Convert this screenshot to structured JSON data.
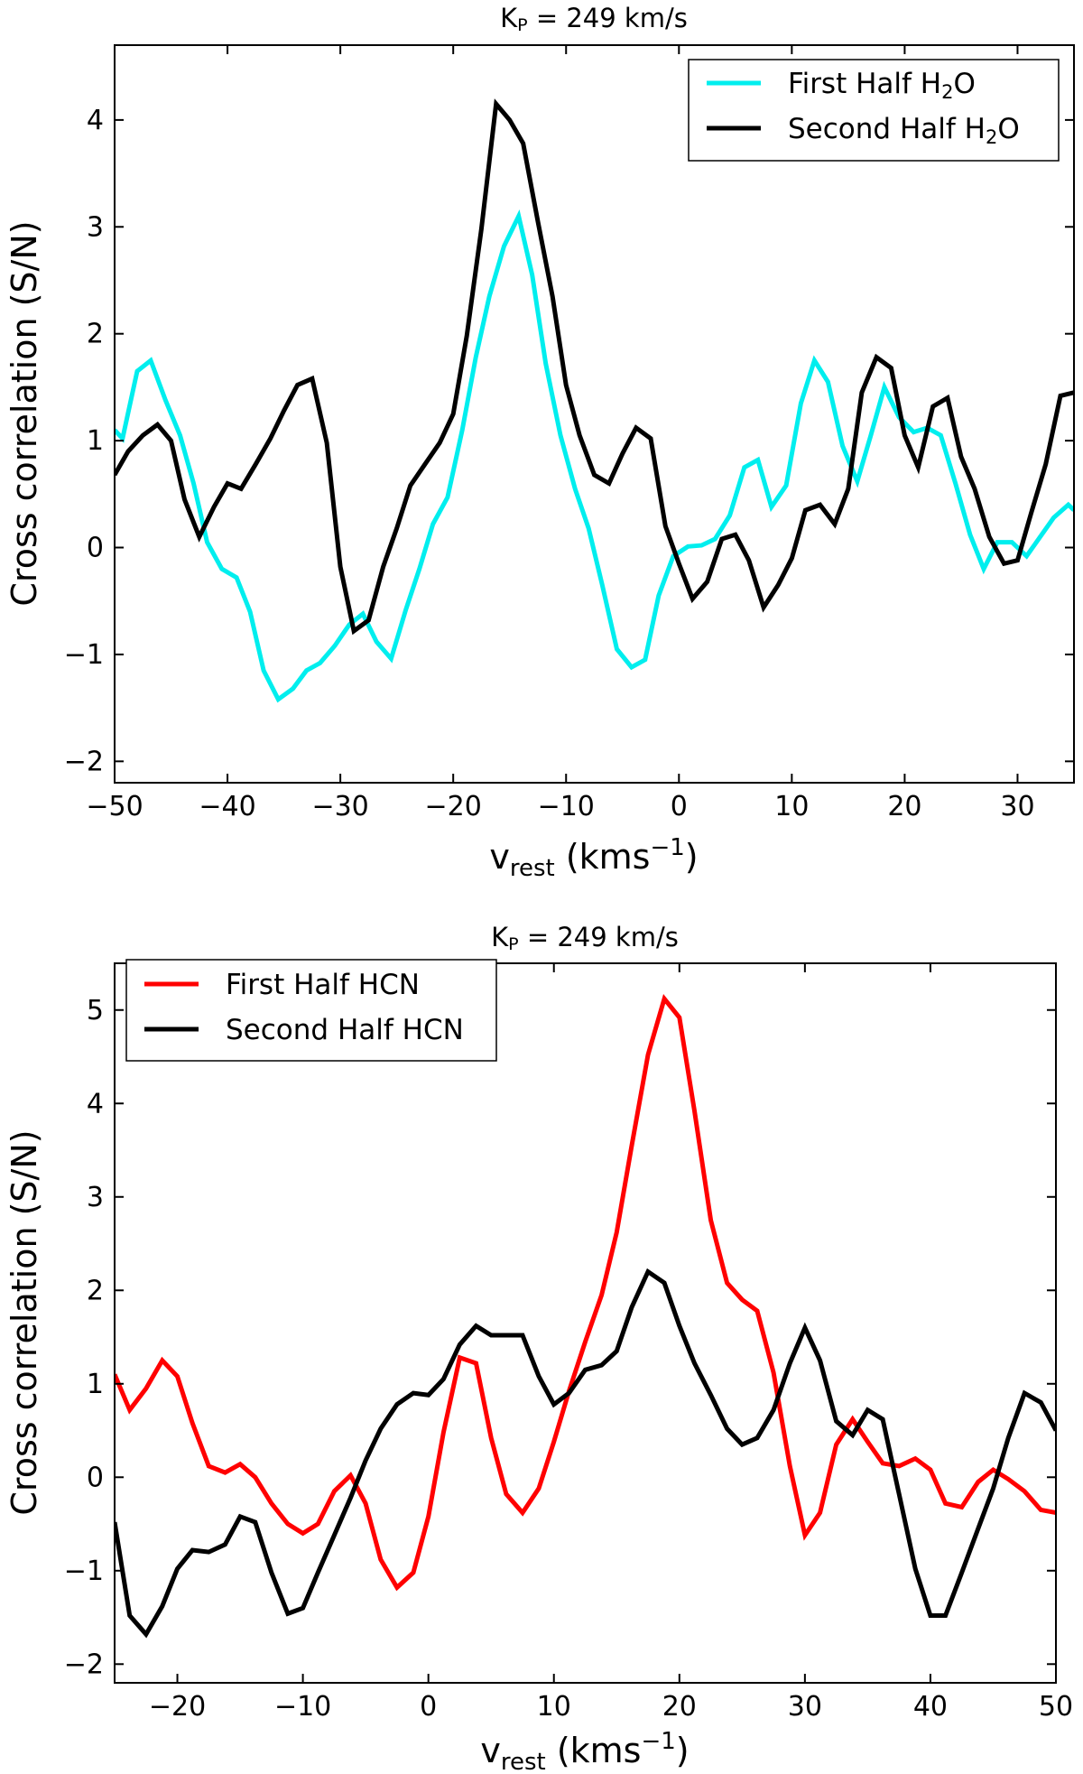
{
  "chart_data": [
    {
      "type": "line",
      "title": {
        "base": "K",
        "sub": "P",
        "rest": " = 249 km/s"
      },
      "xlabel": {
        "base": "v",
        "sub": "rest",
        "rest": " (kms",
        "sup": "−1",
        "end": ")"
      },
      "ylabel": "Cross correlation (S/N)",
      "xlim": [
        -50,
        35
      ],
      "ylim": [
        -2.2,
        4.7
      ],
      "xticks": [
        -50,
        -40,
        -30,
        -20,
        -10,
        0,
        10,
        20,
        30
      ],
      "xtick_labels": [
        "−50",
        "−40",
        "−30",
        "−20",
        "−10",
        "0",
        "10",
        "20",
        "30"
      ],
      "yticks": [
        -2,
        -1,
        0,
        1,
        2,
        3,
        4
      ],
      "ytick_labels": [
        "−2",
        "−1",
        "0",
        "1",
        "2",
        "3",
        "4"
      ],
      "grid": false,
      "legend_position": "top-right",
      "series": [
        {
          "name": "First Half H2O",
          "label": {
            "base": "First Half H",
            "sub": "2",
            "rest": "O"
          },
          "color": "#00eeee",
          "x": [
            -50,
            -49.3,
            -48,
            -46.8,
            -45.5,
            -44.2,
            -43,
            -41.8,
            -40.5,
            -39.2,
            -38,
            -36.8,
            -35.5,
            -34.2,
            -33,
            -31.8,
            -30.5,
            -29.2,
            -28,
            -26.8,
            -25.5,
            -24.2,
            -23,
            -21.8,
            -20.5,
            -19.2,
            -18,
            -16.8,
            -15.5,
            -14.2,
            -13,
            -11.8,
            -10.5,
            -9.2,
            -8,
            -6.8,
            -5.5,
            -4.2,
            -3,
            -1.8,
            -0.5,
            0.8,
            2,
            3.2,
            4.5,
            5.8,
            7,
            8.2,
            9.5,
            10.8,
            12,
            13.2,
            14.5,
            15.8,
            17,
            18.2,
            19.5,
            20.8,
            22,
            23.2,
            24.5,
            25.8,
            27,
            28.2,
            29.5,
            30.8,
            32,
            33.2,
            34.5,
            35
          ],
          "y": [
            1.1,
            1.02,
            1.65,
            1.75,
            1.38,
            1.05,
            0.6,
            0.05,
            -0.2,
            -0.28,
            -0.6,
            -1.15,
            -1.42,
            -1.32,
            -1.15,
            -1.08,
            -0.92,
            -0.72,
            -0.62,
            -0.88,
            -1.04,
            -0.58,
            -0.2,
            0.22,
            0.47,
            1.1,
            1.78,
            2.35,
            2.82,
            3.1,
            2.55,
            1.72,
            1.05,
            0.55,
            0.18,
            -0.35,
            -0.95,
            -1.12,
            -1.05,
            -0.45,
            -0.08,
            0.01,
            0.02,
            0.08,
            0.3,
            0.75,
            0.82,
            0.38,
            0.58,
            1.35,
            1.75,
            1.55,
            0.95,
            0.62,
            1.05,
            1.5,
            1.22,
            1.08,
            1.12,
            1.05,
            0.6,
            0.12,
            -0.2,
            0.05,
            0.05,
            -0.08,
            0.1,
            0.28,
            0.4,
            0.35
          ]
        },
        {
          "name": "Second Half H2O",
          "label": {
            "base": "Second Half H",
            "sub": "2",
            "rest": "O"
          },
          "color": "#000000",
          "x": [
            -50,
            -48.8,
            -47.5,
            -46.2,
            -45,
            -43.8,
            -42.5,
            -41.2,
            -40,
            -38.8,
            -37.5,
            -36.2,
            -35,
            -33.8,
            -32.5,
            -31.2,
            -30,
            -28.8,
            -27.5,
            -26.2,
            -25,
            -23.8,
            -22.5,
            -21.2,
            -20,
            -18.8,
            -17.5,
            -16.2,
            -15,
            -13.8,
            -12.5,
            -11.2,
            -10,
            -8.8,
            -7.5,
            -6.2,
            -5,
            -3.8,
            -2.5,
            -1.2,
            0,
            1.2,
            2.5,
            3.8,
            5,
            6.2,
            7.5,
            8.8,
            10,
            11.2,
            12.5,
            13.8,
            15,
            16.2,
            17.5,
            18.8,
            20,
            21.2,
            22.5,
            23.8,
            25,
            26.2,
            27.5,
            28.8,
            30,
            31.2,
            32.5,
            33.8,
            35
          ],
          "y": [
            0.68,
            0.9,
            1.05,
            1.15,
            1.0,
            0.45,
            0.1,
            0.38,
            0.6,
            0.55,
            0.78,
            1.02,
            1.28,
            1.52,
            1.58,
            0.98,
            -0.18,
            -0.78,
            -0.68,
            -0.18,
            0.18,
            0.58,
            0.78,
            0.98,
            1.25,
            1.98,
            2.98,
            4.15,
            4.0,
            3.78,
            3.05,
            2.35,
            1.52,
            1.05,
            0.68,
            0.6,
            0.88,
            1.12,
            1.02,
            0.2,
            -0.15,
            -0.48,
            -0.32,
            0.08,
            0.12,
            -0.12,
            -0.56,
            -0.35,
            -0.1,
            0.35,
            0.4,
            0.22,
            0.55,
            1.45,
            1.78,
            1.68,
            1.05,
            0.75,
            1.32,
            1.4,
            0.85,
            0.55,
            0.1,
            -0.15,
            -0.12,
            0.32,
            0.78,
            1.42,
            1.45
          ]
        }
      ]
    },
    {
      "type": "line",
      "title": {
        "base": "K",
        "sub": "P",
        "rest": " = 249 km/s"
      },
      "xlabel": {
        "base": "v",
        "sub": "rest",
        "rest": " (kms",
        "sup": "−1",
        "end": ")"
      },
      "ylabel": "Cross correlation (S/N)",
      "xlim": [
        -25,
        50
      ],
      "ylim": [
        -2.2,
        5.5
      ],
      "xticks": [
        -20,
        -10,
        0,
        10,
        20,
        30,
        40,
        50
      ],
      "xtick_labels": [
        "−20",
        "−10",
        "0",
        "10",
        "20",
        "30",
        "40",
        "50"
      ],
      "yticks": [
        -2,
        -1,
        0,
        1,
        2,
        3,
        4,
        5
      ],
      "ytick_labels": [
        "−2",
        "−1",
        "0",
        "1",
        "2",
        "3",
        "4",
        "5"
      ],
      "grid": false,
      "legend_position": "top-left",
      "series": [
        {
          "name": "First Half HCN",
          "label": {
            "base": "First Half HCN",
            "sub": "",
            "rest": ""
          },
          "color": "#ff0000",
          "x": [
            -25,
            -23.8,
            -22.5,
            -21.2,
            -20,
            -18.8,
            -17.5,
            -16.2,
            -15,
            -13.8,
            -12.5,
            -11.2,
            -10,
            -8.8,
            -7.5,
            -6.2,
            -5,
            -3.8,
            -2.5,
            -1.2,
            0,
            1.2,
            2.5,
            3.8,
            5,
            6.2,
            7.5,
            8.8,
            10,
            11.2,
            12.5,
            13.8,
            15,
            16.2,
            17.5,
            18.8,
            20,
            21.2,
            22.5,
            23.8,
            25,
            26.2,
            27.5,
            28.8,
            30,
            31.2,
            32.5,
            33.8,
            35,
            36.2,
            37.5,
            38.8,
            40,
            41.2,
            42.5,
            43.8,
            45,
            46.2,
            47.5,
            48.8,
            50
          ],
          "y": [
            1.1,
            0.72,
            0.95,
            1.25,
            1.08,
            0.58,
            0.12,
            0.05,
            0.14,
            0.0,
            -0.28,
            -0.5,
            -0.6,
            -0.5,
            -0.15,
            0.02,
            -0.28,
            -0.88,
            -1.18,
            -1.02,
            -0.42,
            0.48,
            1.28,
            1.22,
            0.42,
            -0.18,
            -0.38,
            -0.12,
            0.38,
            0.92,
            1.45,
            1.95,
            2.62,
            3.55,
            4.52,
            5.12,
            4.92,
            3.92,
            2.75,
            2.08,
            1.9,
            1.78,
            1.12,
            0.12,
            -0.62,
            -0.38,
            0.35,
            0.62,
            0.38,
            0.15,
            0.12,
            0.2,
            0.08,
            -0.28,
            -0.32,
            -0.05,
            0.08,
            -0.02,
            -0.15,
            -0.35,
            -0.38
          ]
        },
        {
          "name": "Second Half HCN",
          "label": {
            "base": "Second Half HCN",
            "sub": "",
            "rest": ""
          },
          "color": "#000000",
          "x": [
            -25,
            -23.8,
            -22.5,
            -21.2,
            -20,
            -18.8,
            -17.5,
            -16.2,
            -15,
            -13.8,
            -12.5,
            -11.2,
            -10,
            -8.8,
            -7.5,
            -6.2,
            -5,
            -3.8,
            -2.5,
            -1.2,
            0,
            1.2,
            2.5,
            3.8,
            5,
            6.2,
            7.5,
            8.8,
            10,
            11.2,
            12.5,
            13.8,
            15,
            16.2,
            17.5,
            18.8,
            20,
            21.2,
            22.5,
            23.8,
            25,
            26.2,
            27.5,
            28.8,
            30,
            31.2,
            32.5,
            33.8,
            35,
            36.2,
            37.5,
            38.8,
            40,
            41.2,
            42.5,
            43.8,
            45,
            46.2,
            47.5,
            48.8,
            50
          ],
          "y": [
            -0.48,
            -1.48,
            -1.68,
            -1.38,
            -0.98,
            -0.78,
            -0.8,
            -0.72,
            -0.42,
            -0.48,
            -1.02,
            -1.46,
            -1.4,
            -1.02,
            -0.62,
            -0.22,
            0.18,
            0.52,
            0.78,
            0.9,
            0.88,
            1.05,
            1.42,
            1.62,
            1.52,
            1.52,
            1.52,
            1.08,
            0.78,
            0.9,
            1.15,
            1.2,
            1.35,
            1.82,
            2.2,
            2.08,
            1.62,
            1.22,
            0.88,
            0.52,
            0.35,
            0.42,
            0.72,
            1.22,
            1.6,
            1.25,
            0.6,
            0.45,
            0.72,
            0.62,
            -0.18,
            -0.98,
            -1.48,
            -1.48,
            -1.02,
            -0.55,
            -0.12,
            0.42,
            0.9,
            0.8,
            0.5
          ]
        }
      ]
    }
  ]
}
